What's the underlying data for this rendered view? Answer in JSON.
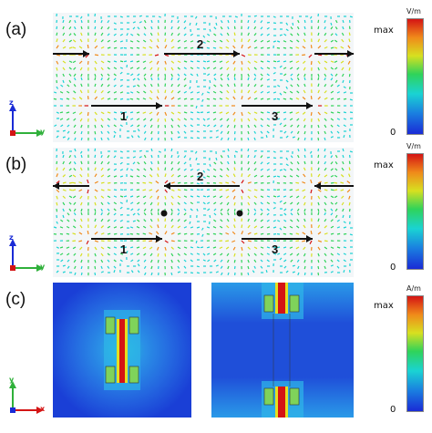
{
  "panels": [
    {
      "label": "(a)",
      "axis_h": "y",
      "axis_v": "z",
      "dipole_labels": [
        "1",
        "2",
        "3"
      ]
    },
    {
      "label": "(b)",
      "axis_h": "y",
      "axis_v": "z",
      "dipole_labels": [
        "1",
        "2",
        "3"
      ]
    },
    {
      "label": "(c)",
      "axis_h": "x",
      "axis_v": "y"
    }
  ],
  "colorbars": [
    {
      "unit": "V/m",
      "max_label": "max",
      "zero_label": "0"
    },
    {
      "unit": "V/m",
      "max_label": "max",
      "zero_label": "0"
    },
    {
      "unit": "A/m",
      "max_label": "max",
      "zero_label": "0"
    }
  ],
  "colors": {
    "hot": "#d41414",
    "cold": "#1a2bd6",
    "arrow": "#111111"
  }
}
